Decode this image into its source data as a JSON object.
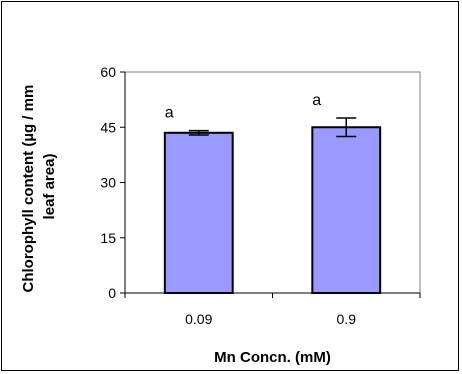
{
  "chart_data": {
    "type": "bar",
    "categories": [
      "0.09",
      "0.9"
    ],
    "values": [
      43.5,
      45
    ],
    "errors": [
      0.6,
      2.5
    ],
    "significance": [
      "a",
      "a"
    ],
    "xlabel": "Mn Concn. (mM)",
    "ylabel_lines": [
      "Chlorophyll content (µg / mm",
      "leaf area)"
    ],
    "ylim": [
      0,
      60
    ],
    "yticks": [
      "0",
      "15",
      "30",
      "45",
      "60"
    ],
    "grid": false,
    "colors": {
      "bar_fill": "#9999ff",
      "bar_stroke": "#000000",
      "plot_border": "#808080"
    }
  }
}
